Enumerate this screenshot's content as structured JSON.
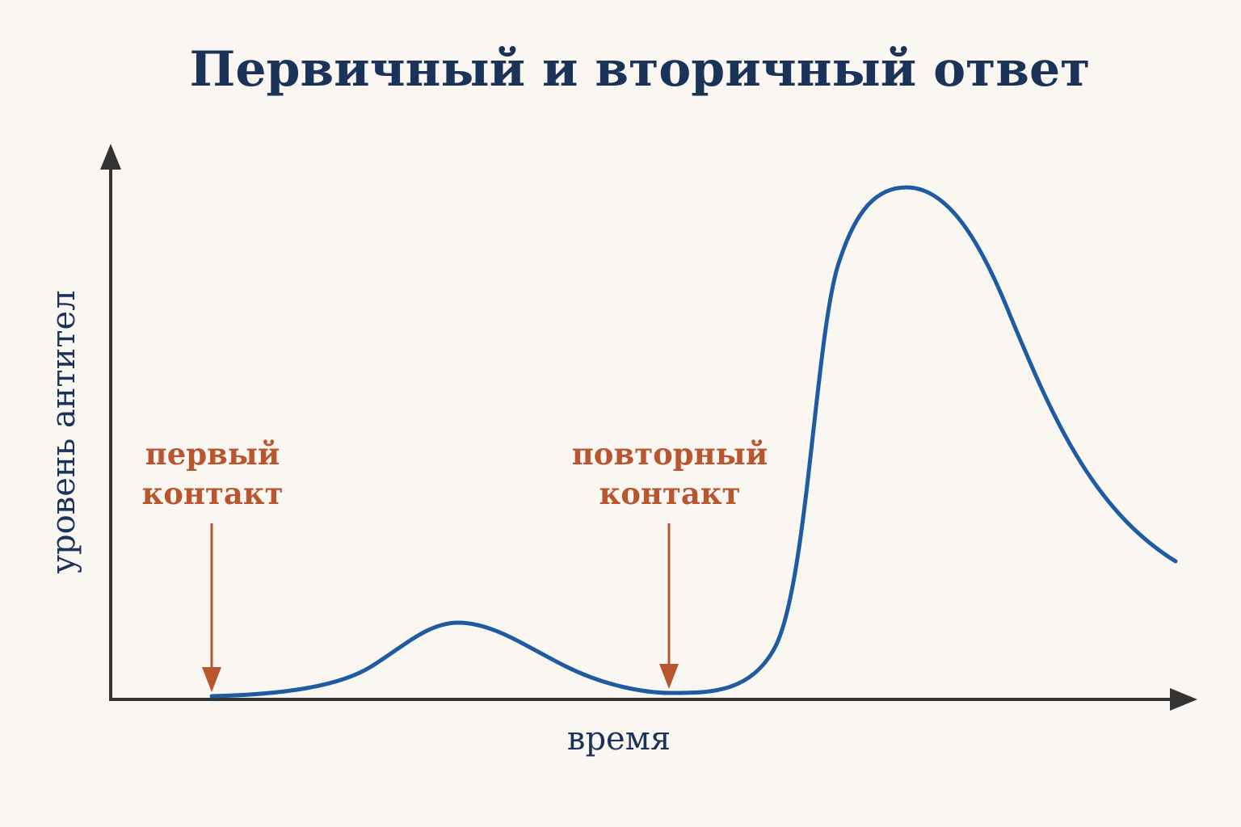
{
  "title": "Первичный и вторичный ответ",
  "axes": {
    "x_label": "время",
    "y_label": "уровень антител"
  },
  "annotations": [
    {
      "lines": [
        "первый",
        "контакт"
      ]
    },
    {
      "lines": [
        "повторный",
        "контакт"
      ]
    }
  ]
}
